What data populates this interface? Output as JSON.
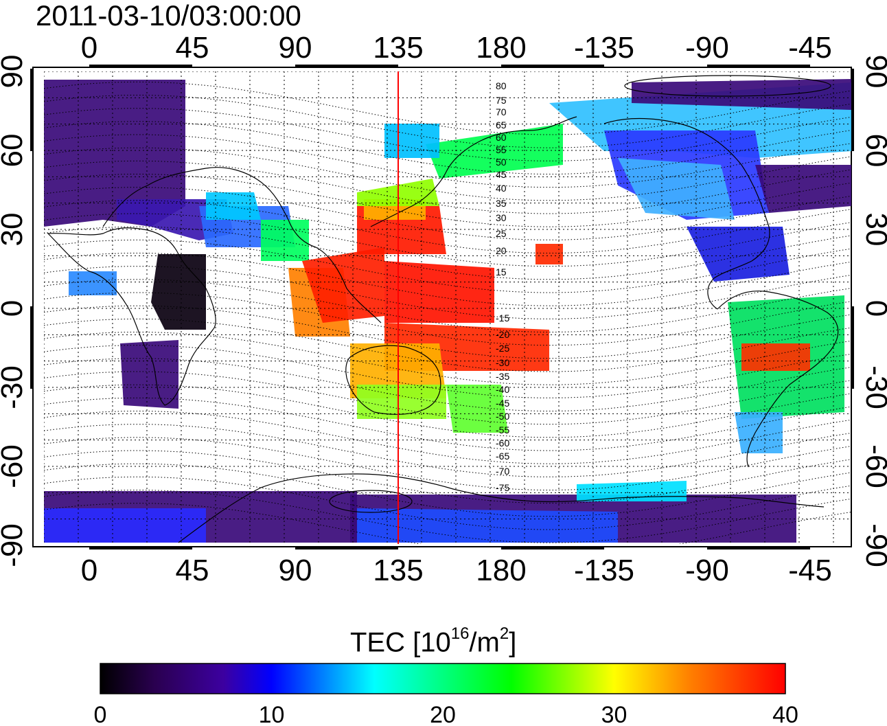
{
  "map": {
    "timestamp": "2011-03-10/03:00:00",
    "top_lon_ticks": [
      "0",
      "45",
      "90",
      "135",
      "180",
      "-135",
      "-90",
      "-45"
    ],
    "bottom_lon_ticks": [
      "0",
      "45",
      "90",
      "135",
      "180",
      "-135",
      "-90",
      "-45"
    ],
    "lat_ticks_left": [
      "90",
      "60",
      "30",
      "0",
      "-30",
      "-60",
      "-90"
    ],
    "lat_ticks_right": [
      "90",
      "60",
      "30",
      "0",
      "-30",
      "-60",
      "-90"
    ],
    "marked_meridian": 135,
    "marked_meridian_color": "#ff0000",
    "contour_labels_north": [
      "80",
      "75",
      "70",
      "65",
      "60",
      "55",
      "50",
      "45",
      "40",
      "35",
      "30",
      "25",
      "20",
      "15"
    ],
    "contour_labels_south": [
      "15",
      "20",
      "25",
      "30",
      "35",
      "40",
      "45",
      "50",
      "55",
      "60",
      "65",
      "70",
      "75"
    ]
  },
  "colorbar": {
    "title_prefix": "TEC  [10",
    "title_exp": "16",
    "title_mid": "/m",
    "title_exp2": "2",
    "title_suffix": "]",
    "ticks": [
      "0",
      "10",
      "20",
      "30",
      "40"
    ],
    "range": [
      0,
      40
    ],
    "colors": [
      "#000000",
      "#2a0050",
      "#3c00a0",
      "#0000ff",
      "#0078ff",
      "#00ffff",
      "#00ff80",
      "#00ff00",
      "#ffff00",
      "#ff8000",
      "#ff0000"
    ]
  }
}
